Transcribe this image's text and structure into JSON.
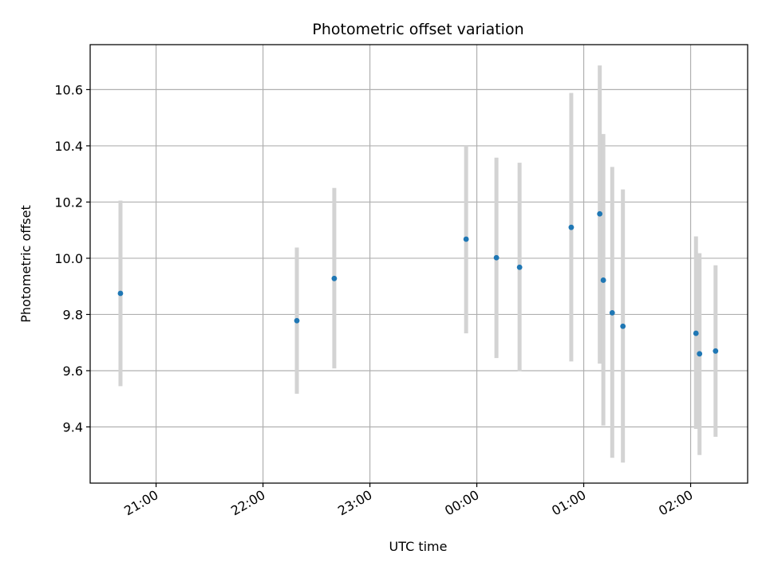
{
  "chart_data": {
    "type": "scatter",
    "title": "Photometric offset variation",
    "xlabel": "UTC time",
    "ylabel": "Photometric offset",
    "x_axis": {
      "type": "time",
      "ticks": [
        "21:00",
        "22:00",
        "23:00",
        "00:00",
        "01:00",
        "02:00"
      ],
      "range": [
        "20:23",
        "02:32"
      ]
    },
    "ylim": [
      9.2,
      10.76
    ],
    "y_ticks": [
      9.4,
      9.6,
      9.8,
      10.0,
      10.2,
      10.4,
      10.6
    ],
    "grid": true,
    "errorbar_color": "#d3d3d3",
    "marker_color": "#1f77b4",
    "series": [
      {
        "points": [
          {
            "x": "20:40",
            "y": 9.875,
            "ylow": 9.545,
            "yhigh": 10.205
          },
          {
            "x": "22:19",
            "y": 9.778,
            "ylow": 9.518,
            "yhigh": 10.038
          },
          {
            "x": "22:40",
            "y": 9.928,
            "ylow": 9.608,
            "yhigh": 10.25
          },
          {
            "x": "23:54",
            "y": 10.068,
            "ylow": 9.733,
            "yhigh": 10.4
          },
          {
            "x": "00:11",
            "y": 10.002,
            "ylow": 9.645,
            "yhigh": 10.358
          },
          {
            "x": "00:24",
            "y": 9.968,
            "ylow": 9.598,
            "yhigh": 10.34
          },
          {
            "x": "00:53",
            "y": 10.11,
            "ylow": 9.633,
            "yhigh": 10.588
          },
          {
            "x": "01:09",
            "y": 10.158,
            "ylow": 9.625,
            "yhigh": 10.686
          },
          {
            "x": "01:11",
            "y": 9.922,
            "ylow": 9.405,
            "yhigh": 10.442
          },
          {
            "x": "01:16",
            "y": 9.806,
            "ylow": 9.29,
            "yhigh": 10.325
          },
          {
            "x": "01:22",
            "y": 9.758,
            "ylow": 9.273,
            "yhigh": 10.245
          },
          {
            "x": "02:03",
            "y": 9.733,
            "ylow": 9.393,
            "yhigh": 10.078
          },
          {
            "x": "02:05",
            "y": 9.66,
            "ylow": 9.3,
            "yhigh": 10.018
          },
          {
            "x": "02:14",
            "y": 9.67,
            "ylow": 9.365,
            "yhigh": 9.975
          }
        ]
      }
    ]
  }
}
